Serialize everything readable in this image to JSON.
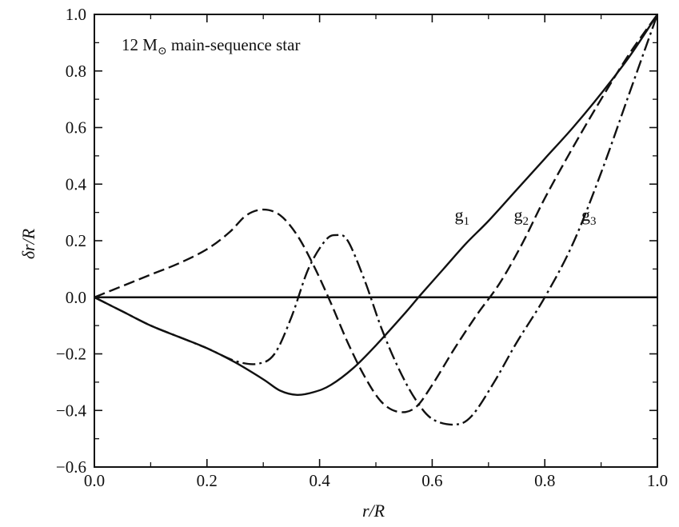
{
  "chart_data": {
    "type": "line",
    "title": "",
    "annotation": {
      "prefix": "12 M",
      "symbol": "⊙",
      "suffix": " main-sequence star"
    },
    "xlabel": "r/R",
    "ylabel": "δr/R",
    "xlim": [
      0.0,
      1.0
    ],
    "ylim": [
      -0.6,
      1.0
    ],
    "x_ticks": [
      0.0,
      0.2,
      0.4,
      0.6,
      0.8,
      1.0
    ],
    "x_tick_labels": [
      "0.0",
      "0.2",
      "0.4",
      "0.6",
      "0.8",
      "1.0"
    ],
    "y_ticks": [
      -0.6,
      -0.4,
      -0.2,
      0.0,
      0.2,
      0.4,
      0.6,
      0.8,
      1.0
    ],
    "y_tick_labels": [
      "−0.6",
      "−0.4",
      "−0.2",
      "0.0",
      "0.2",
      "0.4",
      "0.6",
      "0.8",
      "1.0"
    ],
    "grid": false,
    "zero_line": true,
    "series": [
      {
        "name": "g1",
        "label_base": "g",
        "label_sub": "1",
        "style": "solid",
        "label_pos": [
          0.64,
          0.27
        ],
        "points": [
          [
            0.0,
            0.0
          ],
          [
            0.05,
            -0.05
          ],
          [
            0.1,
            -0.1
          ],
          [
            0.15,
            -0.14
          ],
          [
            0.2,
            -0.18
          ],
          [
            0.25,
            -0.23
          ],
          [
            0.3,
            -0.29
          ],
          [
            0.33,
            -0.33
          ],
          [
            0.36,
            -0.345
          ],
          [
            0.39,
            -0.335
          ],
          [
            0.42,
            -0.31
          ],
          [
            0.46,
            -0.25
          ],
          [
            0.5,
            -0.17
          ],
          [
            0.55,
            -0.06
          ],
          [
            0.58,
            0.01
          ],
          [
            0.62,
            0.1
          ],
          [
            0.66,
            0.19
          ],
          [
            0.7,
            0.27
          ],
          [
            0.75,
            0.38
          ],
          [
            0.8,
            0.49
          ],
          [
            0.85,
            0.6
          ],
          [
            0.9,
            0.72
          ],
          [
            0.95,
            0.85
          ],
          [
            1.0,
            1.0
          ]
        ]
      },
      {
        "name": "g2",
        "label_base": "g",
        "label_sub": "2",
        "style": "dashed",
        "label_pos": [
          0.745,
          0.27
        ],
        "points": [
          [
            0.0,
            0.0
          ],
          [
            0.05,
            0.04
          ],
          [
            0.1,
            0.08
          ],
          [
            0.15,
            0.12
          ],
          [
            0.2,
            0.17
          ],
          [
            0.24,
            0.23
          ],
          [
            0.27,
            0.29
          ],
          [
            0.3,
            0.31
          ],
          [
            0.33,
            0.29
          ],
          [
            0.36,
            0.22
          ],
          [
            0.39,
            0.11
          ],
          [
            0.42,
            -0.02
          ],
          [
            0.45,
            -0.16
          ],
          [
            0.48,
            -0.28
          ],
          [
            0.51,
            -0.37
          ],
          [
            0.54,
            -0.405
          ],
          [
            0.57,
            -0.39
          ],
          [
            0.6,
            -0.31
          ],
          [
            0.64,
            -0.18
          ],
          [
            0.68,
            -0.06
          ],
          [
            0.72,
            0.05
          ],
          [
            0.76,
            0.19
          ],
          [
            0.8,
            0.35
          ],
          [
            0.85,
            0.53
          ],
          [
            0.9,
            0.7
          ],
          [
            0.95,
            0.86
          ],
          [
            1.0,
            1.0
          ]
        ]
      },
      {
        "name": "g3",
        "label_base": "g",
        "label_sub": "3",
        "style": "dashdot",
        "label_pos": [
          0.865,
          0.27
        ],
        "points": [
          [
            0.0,
            0.0
          ],
          [
            0.05,
            -0.05
          ],
          [
            0.1,
            -0.1
          ],
          [
            0.15,
            -0.14
          ],
          [
            0.2,
            -0.18
          ],
          [
            0.25,
            -0.225
          ],
          [
            0.29,
            -0.235
          ],
          [
            0.32,
            -0.2
          ],
          [
            0.35,
            -0.07
          ],
          [
            0.38,
            0.1
          ],
          [
            0.41,
            0.2
          ],
          [
            0.43,
            0.22
          ],
          [
            0.45,
            0.2
          ],
          [
            0.48,
            0.06
          ],
          [
            0.51,
            -0.11
          ],
          [
            0.54,
            -0.25
          ],
          [
            0.57,
            -0.36
          ],
          [
            0.6,
            -0.43
          ],
          [
            0.64,
            -0.45
          ],
          [
            0.67,
            -0.42
          ],
          [
            0.71,
            -0.3
          ],
          [
            0.75,
            -0.16
          ],
          [
            0.8,
            0.0
          ],
          [
            0.85,
            0.19
          ],
          [
            0.9,
            0.44
          ],
          [
            0.95,
            0.72
          ],
          [
            1.0,
            1.0
          ]
        ]
      }
    ]
  }
}
